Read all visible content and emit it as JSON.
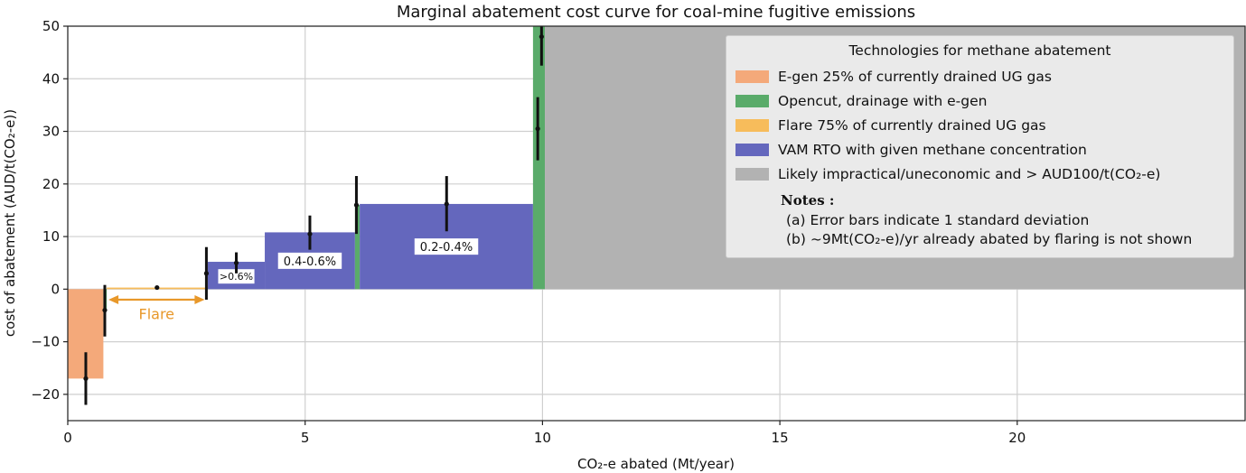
{
  "chart_data": {
    "type": "bar",
    "title": "Marginal abatement cost curve for coal-mine fugitive emissions",
    "xlabel": "CO₂-e abated (Mt/year)",
    "ylabel": "cost of abatement (AUD/t(CO₂-e))",
    "xlim": [
      0,
      24.8
    ],
    "ylim": [
      -25,
      50
    ],
    "xticks": [
      0,
      5,
      10,
      15,
      20
    ],
    "yticks": [
      -20,
      -10,
      0,
      10,
      20,
      30,
      40,
      50
    ],
    "tick_labels_x": [
      "0",
      "5",
      "10",
      "15",
      "20"
    ],
    "tick_labels_y": [
      "−20",
      "−10",
      "0",
      "10",
      "20",
      "30",
      "40",
      "50"
    ],
    "grid": true,
    "legend_placement": "top-right",
    "colors": {
      "egen": "#f4a97a",
      "opencut": "#5aab6a",
      "flare": "#f7bc5b",
      "vam": "#6467bd",
      "impractical": "#b2b2b2",
      "error_bar": "#111111",
      "flare_arrow": "#e8982a"
    },
    "bars": [
      {
        "series": "E-gen 25% of currently drained UG gas",
        "x_start": 0.0,
        "x_end": 0.75,
        "value": -17,
        "color_key": "egen"
      },
      {
        "series": "Opencut, drainage with e-gen",
        "x_start": 0.75,
        "x_end": 0.82,
        "value": -4,
        "color_key": "opencut"
      },
      {
        "series": "Flare 75% of currently drained UG gas",
        "x_start": 0.82,
        "x_end": 2.95,
        "value": 0.3,
        "color_key": "flare"
      },
      {
        "series": "VAM RTO with given methane concentration",
        "x_start": 2.95,
        "x_end": 4.15,
        "value": 5.2,
        "color_key": "vam",
        "label": ">0.6%"
      },
      {
        "series": "VAM RTO with given methane concentration",
        "x_start": 4.15,
        "x_end": 6.05,
        "value": 10.8,
        "color_key": "vam",
        "label": "0.4-0.6%"
      },
      {
        "series": "Opencut, drainage with e-gen",
        "x_start": 6.05,
        "x_end": 6.15,
        "value": 16,
        "color_key": "opencut"
      },
      {
        "series": "VAM RTO with given methane concentration",
        "x_start": 6.15,
        "x_end": 9.8,
        "value": 16.2,
        "color_key": "vam",
        "label": "0.2-0.4%"
      },
      {
        "series": "Opencut, drainage with e-gen",
        "x_start": 9.8,
        "x_end": 10.05,
        "value": 50,
        "color_key": "opencut"
      },
      {
        "series": "Likely impractical/uneconomic and > AUD100/t(CO₂-e)",
        "x_start": 10.05,
        "x_end": 24.8,
        "value": 50,
        "color_key": "impractical"
      }
    ],
    "error_bars": [
      {
        "x": 0.38,
        "y": -17,
        "y_low": -22,
        "y_high": -12
      },
      {
        "x": 0.78,
        "y": -4,
        "y_low": -9,
        "y_high": 0.8
      },
      {
        "x": 1.88,
        "y": 0.3,
        "y_low": 0,
        "y_high": 0.6
      },
      {
        "x": 2.92,
        "y": 3,
        "y_low": -2,
        "y_high": 8
      },
      {
        "x": 3.55,
        "y": 5,
        "y_low": 3,
        "y_high": 7
      },
      {
        "x": 5.1,
        "y": 10.5,
        "y_low": 7.5,
        "y_high": 14
      },
      {
        "x": 6.08,
        "y": 16,
        "y_low": 10.5,
        "y_high": 21.5
      },
      {
        "x": 7.98,
        "y": 16.2,
        "y_low": 11,
        "y_high": 21.5
      },
      {
        "x": 9.9,
        "y": 30.5,
        "y_low": 24.5,
        "y_high": 36.5
      },
      {
        "x": 9.98,
        "y": 48,
        "y_low": 42.5,
        "y_high": 50
      }
    ],
    "annotation": {
      "text": "Flare",
      "arrow_from": 0.82,
      "arrow_to": 2.92,
      "y": -2,
      "label_y": -5
    }
  },
  "legend": {
    "title": "Technologies for methane abatement",
    "items": [
      {
        "label": "E-gen 25% of currently drained UG gas",
        "color": "#f4a97a"
      },
      {
        "label": "Opencut, drainage with e-gen",
        "color": "#5aab6a"
      },
      {
        "label": "Flare 75% of currently drained UG gas",
        "color": "#f7bc5b"
      },
      {
        "label": "VAM RTO with given methane concentration",
        "color": "#6467bd"
      },
      {
        "label": "Likely impractical/uneconomic and > AUD100/t(CO₂-e)",
        "color": "#b2b2b2"
      }
    ],
    "notes_title": "Notes :",
    "notes": [
      "(a) Error bars indicate 1 standard deviation",
      "(b) ~9Mt(CO₂-e)/yr already abated by flaring is not shown"
    ]
  }
}
